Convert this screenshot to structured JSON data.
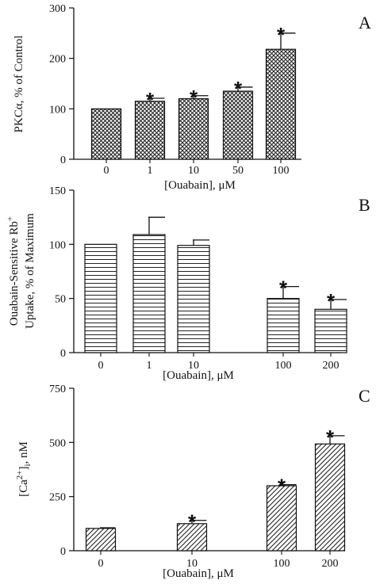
{
  "chart_data": [
    {
      "panel": "A",
      "type": "bar",
      "pattern": "crosshatch",
      "categories": [
        "0",
        "1",
        "10",
        "50",
        "100"
      ],
      "values": [
        100,
        115,
        120,
        135,
        218
      ],
      "errors": [
        0,
        6,
        6,
        8,
        32
      ],
      "significant": [
        false,
        true,
        true,
        true,
        true
      ],
      "xlabel": "[Ouabain], μM",
      "ylabel": "PKCα, % of Control",
      "ylim": [
        0,
        300
      ],
      "yticks": [
        "0",
        "100",
        "200",
        "300"
      ],
      "star_label": "*"
    },
    {
      "panel": "B",
      "type": "bar",
      "pattern": "horizontal-lines",
      "categories": [
        "0",
        "1",
        "10",
        "100",
        "200"
      ],
      "values": [
        100,
        109,
        99,
        50,
        40
      ],
      "errors": [
        0,
        16,
        5,
        11,
        9
      ],
      "significant": [
        false,
        false,
        false,
        true,
        true
      ],
      "xlabel": "[Ouabain], μM",
      "ylabel_line1": "Ouabain-Sensitive Rb",
      "ylabel_sup": "+",
      "ylabel_line2": "Uptake, % of Maximum",
      "ylim": [
        0,
        150
      ],
      "yticks": [
        "0",
        "50",
        "100",
        "150"
      ],
      "star_label": "*"
    },
    {
      "panel": "C",
      "type": "bar",
      "pattern": "diagonal-lines",
      "categories": [
        "0",
        "10",
        "100",
        "200"
      ],
      "values": [
        103,
        125,
        300,
        493
      ],
      "errors": [
        3,
        15,
        5,
        38
      ],
      "significant": [
        false,
        true,
        true,
        true
      ],
      "xlabel": "[Ouabain], μM",
      "ylabel_pre": "[Ca",
      "ylabel_sup": "2+",
      "ylabel_post": "]",
      "ylabel_sub": "i",
      "ylabel_unit": ", nM",
      "ylim": [
        0,
        750
      ],
      "yticks": [
        "0",
        "250",
        "500",
        "750"
      ],
      "star_label": "*"
    }
  ]
}
